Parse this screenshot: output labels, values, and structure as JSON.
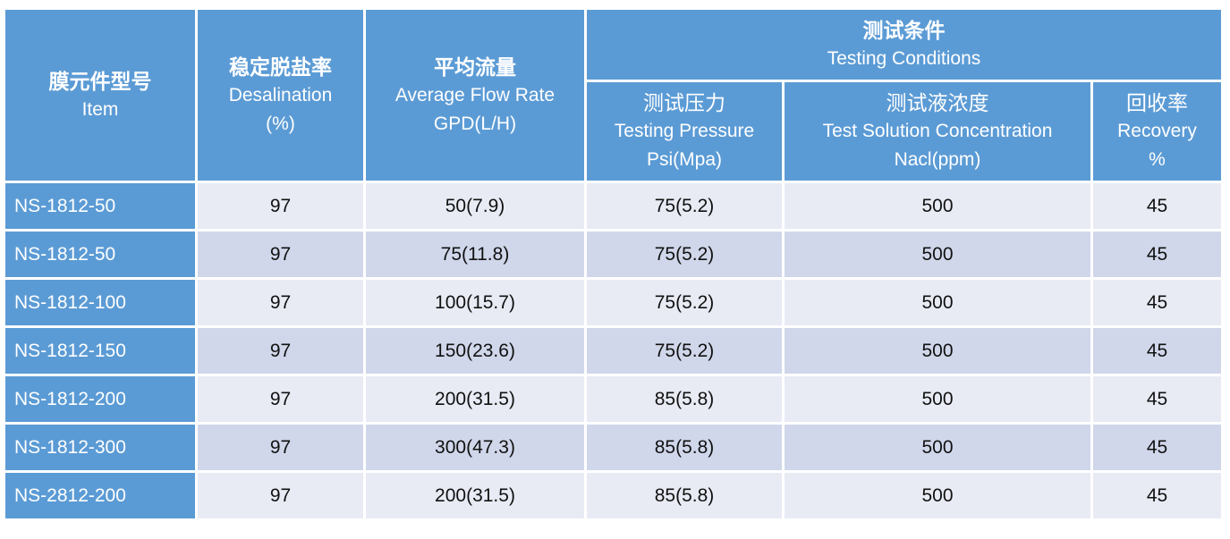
{
  "headers": {
    "item": {
      "zh": "膜元件型号",
      "en": "Item"
    },
    "desalination": {
      "zh": "稳定脱盐率",
      "en": "Desalination",
      "unit": "(%)"
    },
    "flow": {
      "zh": "平均流量",
      "en": "Average Flow Rate",
      "unit": "GPD(L/H)"
    },
    "conditions": {
      "zh": "测试条件",
      "en": "Testing Conditions"
    },
    "pressure": {
      "zh": "测试压力",
      "en": "Testing Pressure",
      "unit": "Psi(Mpa)"
    },
    "concentration": {
      "zh": "测试液浓度",
      "en": "Test Solution Concentration",
      "unit": "Nacl(ppm)"
    },
    "recovery": {
      "zh": "回收率",
      "en": "Recovery",
      "unit": "%"
    }
  },
  "rows": [
    {
      "item": "NS-1812-50",
      "desalination": "97",
      "flow": "50(7.9)",
      "pressure": "75(5.2)",
      "concentration": "500",
      "recovery": "45"
    },
    {
      "item": "NS-1812-50",
      "desalination": "97",
      "flow": "75(11.8)",
      "pressure": "75(5.2)",
      "concentration": "500",
      "recovery": "45"
    },
    {
      "item": "NS-1812-100",
      "desalination": "97",
      "flow": "100(15.7)",
      "pressure": "75(5.2)",
      "concentration": "500",
      "recovery": "45"
    },
    {
      "item": "NS-1812-150",
      "desalination": "97",
      "flow": "150(23.6)",
      "pressure": "75(5.2)",
      "concentration": "500",
      "recovery": "45"
    },
    {
      "item": "NS-1812-200",
      "desalination": "97",
      "flow": "200(31.5)",
      "pressure": "85(5.8)",
      "concentration": "500",
      "recovery": "45"
    },
    {
      "item": "NS-1812-300",
      "desalination": "97",
      "flow": "300(47.3)",
      "pressure": "85(5.8)",
      "concentration": "500",
      "recovery": "45"
    },
    {
      "item": "NS-2812-200",
      "desalination": "97",
      "flow": "200(31.5)",
      "pressure": "85(5.8)",
      "concentration": "500",
      "recovery": "45"
    }
  ],
  "colors": {
    "header_bg": "#5b9bd5",
    "header_text": "#ffffff",
    "row_light": "#e8ebf4",
    "row_dark": "#d0d7ea"
  }
}
